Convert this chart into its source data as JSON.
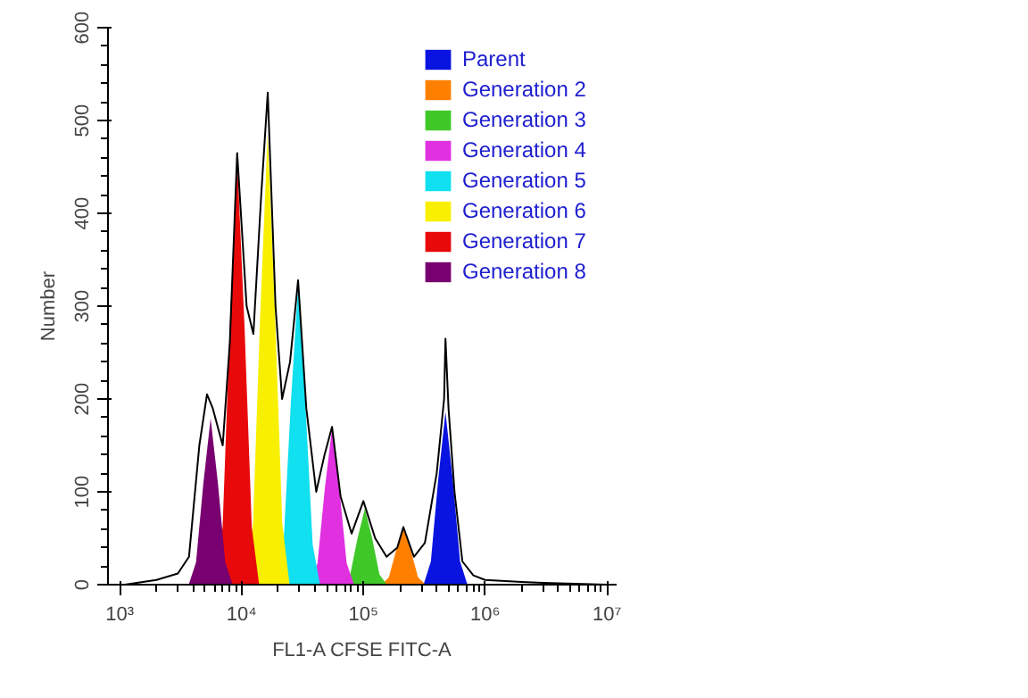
{
  "chart_data": {
    "type": "area",
    "xlabel": "FL1-A CFSE FITC-A",
    "ylabel": "Number",
    "log": "x",
    "grid": false,
    "legend": "top right",
    "xlim": [
      800,
      12000000
    ],
    "ylim": [
      0,
      600
    ],
    "xticks": [
      {
        "value": 1000,
        "label": "10³"
      },
      {
        "value": 10000,
        "label": "10⁴"
      },
      {
        "value": 100000,
        "label": "10⁵"
      },
      {
        "value": 1000000,
        "label": "10⁶"
      },
      {
        "value": 10000000,
        "label": "10⁷"
      }
    ],
    "yticks": [
      0,
      100,
      200,
      300,
      400,
      500,
      600
    ],
    "series": [
      {
        "name": "Parent",
        "color": "#0a14e0",
        "x": [
          312034,
          358296,
          411167,
          472063,
          541928,
          622179,
          714703
        ],
        "values": [
          0,
          25,
          113,
          186,
          113,
          25,
          0
        ]
      },
      {
        "name": "Generation 2",
        "color": "#ff8000",
        "x": [
          140994,
          161898,
          185788,
          213304,
          244873,
          281135,
          322942
        ],
        "values": [
          0,
          8,
          37,
          61,
          37,
          8,
          0
        ]
      },
      {
        "name": "Generation 3",
        "color": "#40c828",
        "x": [
          67952,
          78027,
          89541,
          102802,
          118017,
          135493,
          155642
        ],
        "values": [
          0,
          11,
          50,
          82,
          50,
          11,
          0
        ]
      },
      {
        "name": "Generation 4",
        "color": "#e030e0",
        "x": [
          36576,
          41999,
          48197,
          55335,
          63525,
          72932,
          83777
        ],
        "values": [
          0,
          23,
          103,
          169,
          103,
          23,
          0
        ]
      },
      {
        "name": "Generation 5",
        "color": "#10e0f0",
        "x": [
          19240,
          22092,
          25352,
          29107,
          33415,
          38363,
          44068
        ],
        "values": [
          0,
          43,
          195,
          322,
          195,
          43,
          0
        ]
      },
      {
        "name": "Generation 6",
        "color": "#f8f000",
        "x": [
          10819,
          12423,
          14257,
          16368,
          18790,
          21573,
          24781
        ],
        "values": [
          0,
          66,
          295,
          486,
          295,
          66,
          0
        ]
      },
      {
        "name": "Generation 7",
        "color": "#e80a0a",
        "x": [
          6084,
          6986,
          8017,
          9204,
          10566,
          12131,
          13935
        ],
        "values": [
          0,
          62,
          279,
          459,
          279,
          62,
          0
        ]
      },
      {
        "name": "Generation 8",
        "color": "#780070",
        "x": [
          3681,
          4227,
          4853,
          5572,
          6397,
          7345,
          8433
        ],
        "values": [
          0,
          24,
          109,
          179,
          109,
          24,
          0
        ]
      },
      {
        "type": "line",
        "color": "#000000",
        "x": [
          1100,
          2000,
          3000,
          3700,
          4500,
          5200,
          5800,
          7000,
          8000,
          9200,
          11000,
          12500,
          14500,
          16400,
          19000,
          21500,
          25000,
          29100,
          34000,
          41000,
          48000,
          55300,
          65000,
          80000,
          100000,
          125000,
          155000,
          190000,
          213000,
          260000,
          320000,
          400000,
          460000,
          472000,
          500000,
          560000,
          650000,
          800000,
          1000000,
          2000000,
          3000000,
          10000000
        ],
        "values": [
          0,
          5,
          12,
          30,
          150,
          205,
          190,
          150,
          260,
          465,
          300,
          270,
          420,
          530,
          300,
          200,
          240,
          328,
          190,
          100,
          140,
          170,
          95,
          55,
          90,
          50,
          30,
          40,
          62,
          30,
          45,
          120,
          200,
          265,
          190,
          100,
          25,
          10,
          5,
          3,
          2,
          0
        ]
      }
    ]
  }
}
